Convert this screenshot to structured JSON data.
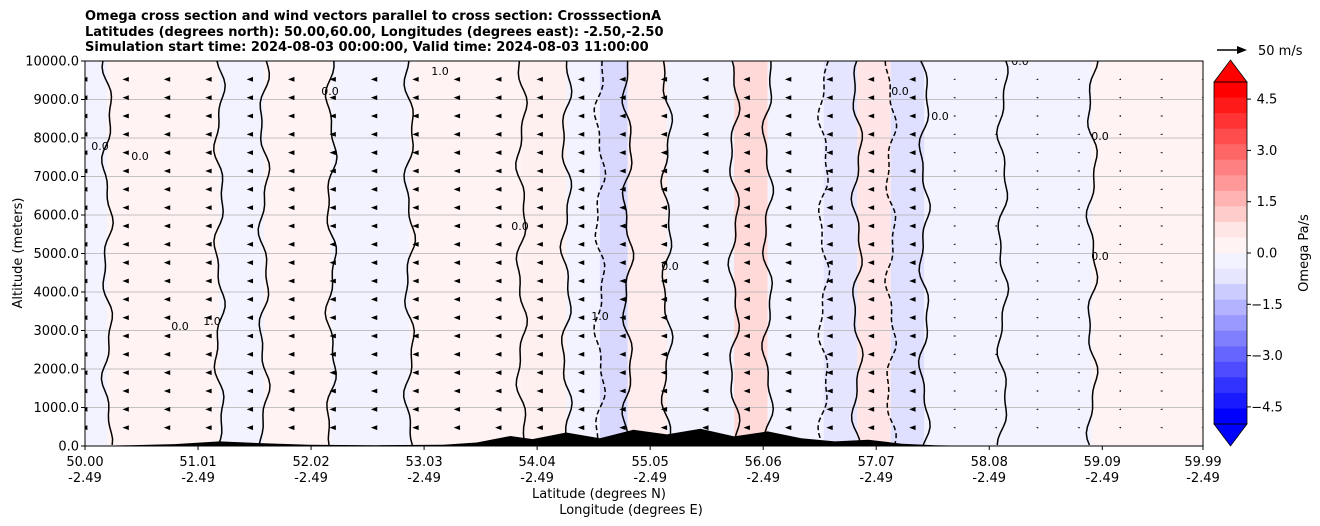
{
  "chart_data": {
    "type": "contour",
    "title_lines": [
      "Omega cross section and wind vectors parallel to cross section: CrosssectionA",
      "Latitudes (degrees north): 50.00,60.00, Longitudes (degrees east): -2.50,-2.50",
      "Simulation start time: 2024-08-03 00:00:00, Valid time: 2024-08-03 11:00:00"
    ],
    "ylabel": "Altitude (meters)",
    "xlabel_lat": "Latitude (degrees N)",
    "xlabel_lon": "Longitude (degrees E)",
    "ylim": [
      0,
      10000
    ],
    "xlim": [
      50.0,
      59.99
    ],
    "y_ticks": [
      0,
      1000,
      2000,
      3000,
      4000,
      5000,
      6000,
      7000,
      8000,
      9000,
      10000
    ],
    "y_tick_labels": [
      "0.0",
      "1000.0",
      "2000.0",
      "3000.0",
      "4000.0",
      "5000.0",
      "6000.0",
      "7000.0",
      "8000.0",
      "9000.0",
      "10000.0"
    ],
    "x_ticks": [
      50.0,
      51.01,
      52.02,
      53.03,
      54.04,
      55.05,
      56.06,
      57.07,
      58.08,
      59.09,
      59.99
    ],
    "x_tick_lat_labels": [
      "50.00",
      "51.01",
      "52.02",
      "53.03",
      "54.04",
      "55.05",
      "56.06",
      "57.07",
      "58.08",
      "59.09",
      "59.99"
    ],
    "x_tick_lon_labels": [
      "-2.49",
      "-2.49",
      "-2.49",
      "-2.49",
      "-2.49",
      "-2.49",
      "-2.49",
      "-2.49",
      "-2.49",
      "-2.49",
      "-2.49"
    ],
    "grid": true,
    "colorbar": {
      "label": "Omega Pa/s",
      "range": [
        -5.0,
        5.0
      ],
      "ticks": [
        4.5,
        3.0,
        1.5,
        0.0,
        -1.5,
        -3.0,
        -4.5
      ],
      "tick_labels": [
        "4.5",
        "3.0",
        "1.5",
        "0.0",
        "−1.5",
        "−3.0",
        "−4.5"
      ],
      "colors": [
        "#ff0000",
        "#ff1a1a",
        "#ff3333",
        "#ff4d4d",
        "#ff6666",
        "#ff8080",
        "#ff9999",
        "#ffb3b3",
        "#ffcccc",
        "#ffe6e6",
        "#fff3f3",
        "#f3f3ff",
        "#e6e6ff",
        "#ccccff",
        "#b3b3ff",
        "#9999ff",
        "#8080ff",
        "#6666ff",
        "#4d4dff",
        "#3333ff",
        "#1a1aff",
        "#0000ff"
      ]
    },
    "quiver_key": "50 m/s",
    "contour_level_labels": [
      "0.0",
      "1.0",
      "1.0",
      "0.0",
      "0.0",
      "0.0",
      "0.0",
      "1.0",
      "0.0",
      "0.0",
      "0.0",
      "0.0",
      "0.0",
      "0.0"
    ],
    "omega_bands": [
      {
        "lat_start": 50.0,
        "lat_end": 50.2,
        "omega": -0.2
      },
      {
        "lat_start": 50.2,
        "lat_end": 51.2,
        "omega": 0.2
      },
      {
        "lat_start": 51.2,
        "lat_end": 51.6,
        "omega": -0.3
      },
      {
        "lat_start": 51.6,
        "lat_end": 52.2,
        "omega": 0.2
      },
      {
        "lat_start": 52.2,
        "lat_end": 52.9,
        "omega": -0.2
      },
      {
        "lat_start": 52.9,
        "lat_end": 53.9,
        "omega": 0.3
      },
      {
        "lat_start": 53.9,
        "lat_end": 54.3,
        "omega": 0.6
      },
      {
        "lat_start": 54.3,
        "lat_end": 54.6,
        "omega": -0.2
      },
      {
        "lat_start": 54.6,
        "lat_end": 54.85,
        "omega": -1.6
      },
      {
        "lat_start": 54.85,
        "lat_end": 55.2,
        "omega": 0.9
      },
      {
        "lat_start": 55.2,
        "lat_end": 55.8,
        "omega": -0.4
      },
      {
        "lat_start": 55.8,
        "lat_end": 56.1,
        "omega": 1.6
      },
      {
        "lat_start": 56.1,
        "lat_end": 56.6,
        "omega": -0.3
      },
      {
        "lat_start": 56.6,
        "lat_end": 56.9,
        "omega": -1.2
      },
      {
        "lat_start": 56.9,
        "lat_end": 57.2,
        "omega": 1.2
      },
      {
        "lat_start": 57.2,
        "lat_end": 57.5,
        "omega": -1.4
      },
      {
        "lat_start": 57.5,
        "lat_end": 58.2,
        "omega": -0.3
      },
      {
        "lat_start": 58.2,
        "lat_end": 59.0,
        "omega": -0.2
      },
      {
        "lat_start": 59.0,
        "lat_end": 59.99,
        "omega": 0.2
      }
    ],
    "terrain": [
      {
        "lat": 50.0,
        "alt": 0
      },
      {
        "lat": 50.4,
        "alt": 20
      },
      {
        "lat": 50.8,
        "alt": 50
      },
      {
        "lat": 51.2,
        "alt": 120
      },
      {
        "lat": 51.6,
        "alt": 70
      },
      {
        "lat": 52.0,
        "alt": 30
      },
      {
        "lat": 52.6,
        "alt": 20
      },
      {
        "lat": 53.2,
        "alt": 30
      },
      {
        "lat": 53.5,
        "alt": 90
      },
      {
        "lat": 53.8,
        "alt": 260
      },
      {
        "lat": 54.0,
        "alt": 180
      },
      {
        "lat": 54.3,
        "alt": 350
      },
      {
        "lat": 54.6,
        "alt": 200
      },
      {
        "lat": 54.9,
        "alt": 420
      },
      {
        "lat": 55.2,
        "alt": 300
      },
      {
        "lat": 55.5,
        "alt": 450
      },
      {
        "lat": 55.8,
        "alt": 250
      },
      {
        "lat": 56.1,
        "alt": 380
      },
      {
        "lat": 56.4,
        "alt": 200
      },
      {
        "lat": 56.7,
        "alt": 120
      },
      {
        "lat": 57.0,
        "alt": 160
      },
      {
        "lat": 57.3,
        "alt": 60
      },
      {
        "lat": 57.6,
        "alt": 20
      },
      {
        "lat": 58.0,
        "alt": 0
      },
      {
        "lat": 59.99,
        "alt": 0
      }
    ]
  }
}
